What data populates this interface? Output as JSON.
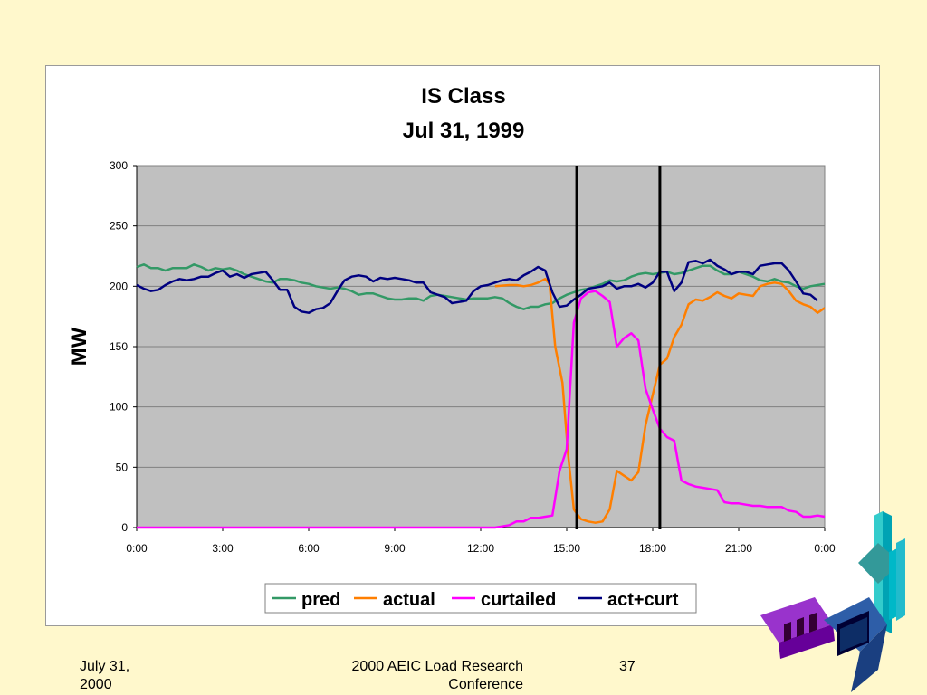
{
  "slide": {
    "footer_date": "July 31, 2000",
    "footer_conference": "2000 AEIC Load Research Conference",
    "page_number": "37",
    "background_color": "#FFF8CC"
  },
  "chart_data": {
    "type": "line",
    "title": "IS Class",
    "subtitle": "Jul 31, 1999",
    "xlabel": "",
    "ylabel": "MW",
    "ylim": [
      0,
      300
    ],
    "yticks": [
      0,
      50,
      100,
      150,
      200,
      250,
      300
    ],
    "xlim": [
      0,
      24
    ],
    "xticks": [
      0,
      3,
      6,
      9,
      12,
      15,
      18,
      21,
      24
    ],
    "xtick_labels": [
      "0:00",
      "3:00",
      "6:00",
      "9:00",
      "12:00",
      "15:00",
      "18:00",
      "21:00",
      "0:00"
    ],
    "grid": true,
    "legend_position": "bottom",
    "vertical_markers": [
      15.35,
      18.25
    ],
    "series": [
      {
        "name": "pred",
        "color": "#339966",
        "points": [
          [
            0,
            216
          ],
          [
            0.25,
            218
          ],
          [
            0.5,
            215
          ],
          [
            0.75,
            215
          ],
          [
            1,
            213
          ],
          [
            1.25,
            215
          ],
          [
            1.5,
            215
          ],
          [
            1.75,
            215
          ],
          [
            2,
            218
          ],
          [
            2.25,
            216
          ],
          [
            2.5,
            213
          ],
          [
            2.75,
            215
          ],
          [
            3,
            214
          ],
          [
            3.25,
            215
          ],
          [
            3.5,
            213
          ],
          [
            3.75,
            210
          ],
          [
            4,
            208
          ],
          [
            4.25,
            206
          ],
          [
            4.5,
            204
          ],
          [
            4.75,
            203
          ],
          [
            5,
            206
          ],
          [
            5.25,
            206
          ],
          [
            5.5,
            205
          ],
          [
            5.75,
            203
          ],
          [
            6,
            202
          ],
          [
            6.25,
            200
          ],
          [
            6.5,
            199
          ],
          [
            6.75,
            198
          ],
          [
            7,
            199
          ],
          [
            7.25,
            198
          ],
          [
            7.5,
            196
          ],
          [
            7.75,
            193
          ],
          [
            8,
            194
          ],
          [
            8.25,
            194
          ],
          [
            8.5,
            192
          ],
          [
            8.75,
            190
          ],
          [
            9,
            189
          ],
          [
            9.25,
            189
          ],
          [
            9.5,
            190
          ],
          [
            9.75,
            190
          ],
          [
            10,
            188
          ],
          [
            10.25,
            192
          ],
          [
            10.5,
            193
          ],
          [
            10.75,
            192
          ],
          [
            11,
            191
          ],
          [
            11.25,
            190
          ],
          [
            11.5,
            189
          ],
          [
            11.75,
            190
          ],
          [
            12,
            190
          ],
          [
            12.25,
            190
          ],
          [
            12.5,
            191
          ],
          [
            12.75,
            190
          ],
          [
            13,
            186
          ],
          [
            13.25,
            183
          ],
          [
            13.5,
            181
          ],
          [
            13.75,
            183
          ],
          [
            14,
            183
          ],
          [
            14.25,
            185
          ],
          [
            14.5,
            186
          ],
          [
            14.75,
            190
          ],
          [
            15,
            193
          ],
          [
            15.25,
            195
          ],
          [
            15.5,
            197
          ],
          [
            15.75,
            198
          ],
          [
            16,
            200
          ],
          [
            16.25,
            202
          ],
          [
            16.5,
            205
          ],
          [
            16.75,
            204
          ],
          [
            17,
            205
          ],
          [
            17.25,
            208
          ],
          [
            17.5,
            210
          ],
          [
            17.75,
            211
          ],
          [
            18,
            210
          ],
          [
            18.25,
            211
          ],
          [
            18.5,
            212
          ],
          [
            18.75,
            210
          ],
          [
            19,
            211
          ],
          [
            19.25,
            213
          ],
          [
            19.5,
            215
          ],
          [
            19.75,
            217
          ],
          [
            20,
            217
          ],
          [
            20.25,
            213
          ],
          [
            20.5,
            210
          ],
          [
            20.75,
            210
          ],
          [
            21,
            212
          ],
          [
            21.25,
            210
          ],
          [
            21.5,
            208
          ],
          [
            21.75,
            205
          ],
          [
            22,
            204
          ],
          [
            22.25,
            206
          ],
          [
            22.5,
            204
          ],
          [
            22.75,
            203
          ],
          [
            23,
            200
          ],
          [
            23.25,
            198
          ],
          [
            23.5,
            200
          ],
          [
            23.75,
            201
          ],
          [
            24,
            202
          ]
        ]
      },
      {
        "name": "actual",
        "color": "#FF7F00",
        "points": [
          [
            12.5,
            200
          ],
          [
            13,
            201
          ],
          [
            13.25,
            201
          ],
          [
            13.5,
            200
          ],
          [
            13.75,
            201
          ],
          [
            14,
            203
          ],
          [
            14.25,
            206
          ],
          [
            14.4,
            202
          ],
          [
            14.6,
            150
          ],
          [
            14.85,
            120
          ],
          [
            15.05,
            60
          ],
          [
            15.25,
            15
          ],
          [
            15.5,
            7
          ],
          [
            15.75,
            5
          ],
          [
            16,
            4
          ],
          [
            16.25,
            5
          ],
          [
            16.5,
            15
          ],
          [
            16.75,
            47
          ],
          [
            17,
            43
          ],
          [
            17.25,
            39
          ],
          [
            17.5,
            46
          ],
          [
            17.75,
            85
          ],
          [
            18,
            110
          ],
          [
            18.25,
            135
          ],
          [
            18.5,
            140
          ],
          [
            18.75,
            158
          ],
          [
            19,
            168
          ],
          [
            19.25,
            185
          ],
          [
            19.5,
            189
          ],
          [
            19.75,
            188
          ],
          [
            20,
            191
          ],
          [
            20.25,
            195
          ],
          [
            20.5,
            192
          ],
          [
            20.75,
            190
          ],
          [
            21,
            194
          ],
          [
            21.25,
            193
          ],
          [
            21.5,
            192
          ],
          [
            21.75,
            200
          ],
          [
            22,
            202
          ],
          [
            22.25,
            203
          ],
          [
            22.5,
            202
          ],
          [
            22.75,
            196
          ],
          [
            23,
            188
          ],
          [
            23.25,
            185
          ],
          [
            23.5,
            183
          ],
          [
            23.75,
            178
          ],
          [
            24,
            182
          ]
        ]
      },
      {
        "name": "curtailed",
        "color": "#FF00FF",
        "points": [
          [
            0,
            0
          ],
          [
            12,
            0
          ],
          [
            12.5,
            0
          ],
          [
            12.75,
            1
          ],
          [
            13,
            2
          ],
          [
            13.25,
            5
          ],
          [
            13.5,
            5
          ],
          [
            13.75,
            8
          ],
          [
            14,
            8
          ],
          [
            14.25,
            9
          ],
          [
            14.5,
            10
          ],
          [
            14.75,
            47
          ],
          [
            15,
            65
          ],
          [
            15.25,
            170
          ],
          [
            15.5,
            190
          ],
          [
            15.75,
            195
          ],
          [
            16,
            196
          ],
          [
            16.25,
            192
          ],
          [
            16.5,
            187
          ],
          [
            16.75,
            150
          ],
          [
            17,
            157
          ],
          [
            17.25,
            161
          ],
          [
            17.5,
            155
          ],
          [
            17.75,
            115
          ],
          [
            18,
            98
          ],
          [
            18.25,
            82
          ],
          [
            18.5,
            75
          ],
          [
            18.75,
            72
          ],
          [
            19,
            39
          ],
          [
            19.25,
            36
          ],
          [
            19.5,
            34
          ],
          [
            19.75,
            33
          ],
          [
            20,
            32
          ],
          [
            20.25,
            31
          ],
          [
            20.5,
            21
          ],
          [
            20.75,
            20
          ],
          [
            21,
            20
          ],
          [
            21.25,
            19
          ],
          [
            21.5,
            18
          ],
          [
            21.75,
            18
          ],
          [
            22,
            17
          ],
          [
            22.25,
            17
          ],
          [
            22.5,
            17
          ],
          [
            22.75,
            14
          ],
          [
            23,
            13
          ],
          [
            23.25,
            9
          ],
          [
            23.5,
            9
          ],
          [
            23.75,
            10
          ],
          [
            24,
            9
          ]
        ]
      },
      {
        "name": "act+curt",
        "color": "#000080",
        "points": [
          [
            0,
            201
          ],
          [
            0.25,
            198
          ],
          [
            0.5,
            196
          ],
          [
            0.75,
            197
          ],
          [
            1,
            201
          ],
          [
            1.25,
            204
          ],
          [
            1.5,
            206
          ],
          [
            1.75,
            205
          ],
          [
            2,
            206
          ],
          [
            2.25,
            208
          ],
          [
            2.5,
            208
          ],
          [
            2.75,
            211
          ],
          [
            3,
            213
          ],
          [
            3.25,
            208
          ],
          [
            3.5,
            210
          ],
          [
            3.75,
            207
          ],
          [
            4,
            210
          ],
          [
            4.25,
            211
          ],
          [
            4.5,
            212
          ],
          [
            4.75,
            205
          ],
          [
            5,
            197
          ],
          [
            5.25,
            197
          ],
          [
            5.5,
            183
          ],
          [
            5.75,
            179
          ],
          [
            6,
            178
          ],
          [
            6.25,
            181
          ],
          [
            6.5,
            182
          ],
          [
            6.75,
            186
          ],
          [
            7,
            196
          ],
          [
            7.25,
            205
          ],
          [
            7.5,
            208
          ],
          [
            7.75,
            209
          ],
          [
            8,
            208
          ],
          [
            8.25,
            204
          ],
          [
            8.5,
            207
          ],
          [
            8.75,
            206
          ],
          [
            9,
            207
          ],
          [
            9.25,
            206
          ],
          [
            9.5,
            205
          ],
          [
            9.75,
            203
          ],
          [
            10,
            203
          ],
          [
            10.25,
            195
          ],
          [
            10.5,
            193
          ],
          [
            10.75,
            191
          ],
          [
            11,
            186
          ],
          [
            11.25,
            187
          ],
          [
            11.5,
            188
          ],
          [
            11.75,
            196
          ],
          [
            12,
            200
          ],
          [
            12.25,
            201
          ],
          [
            12.5,
            203
          ],
          [
            12.75,
            205
          ],
          [
            13,
            206
          ],
          [
            13.25,
            205
          ],
          [
            13.5,
            209
          ],
          [
            13.75,
            212
          ],
          [
            14,
            216
          ],
          [
            14.25,
            213
          ],
          [
            14.5,
            195
          ],
          [
            14.75,
            183
          ],
          [
            15,
            184
          ],
          [
            15.25,
            189
          ],
          [
            15.5,
            193
          ],
          [
            15.75,
            198
          ],
          [
            16,
            199
          ],
          [
            16.25,
            200
          ],
          [
            16.5,
            203
          ],
          [
            16.75,
            198
          ],
          [
            17,
            200
          ],
          [
            17.25,
            200
          ],
          [
            17.5,
            202
          ],
          [
            17.75,
            199
          ],
          [
            18,
            203
          ],
          [
            18.25,
            212
          ],
          [
            18.5,
            212
          ],
          [
            18.75,
            196
          ],
          [
            19,
            203
          ],
          [
            19.25,
            220
          ],
          [
            19.5,
            221
          ],
          [
            19.75,
            219
          ],
          [
            20,
            222
          ],
          [
            20.25,
            217
          ],
          [
            20.5,
            214
          ],
          [
            20.75,
            210
          ],
          [
            21,
            212
          ],
          [
            21.25,
            212
          ],
          [
            21.5,
            210
          ],
          [
            21.75,
            217
          ],
          [
            22,
            218
          ],
          [
            22.25,
            219
          ],
          [
            22.5,
            219
          ],
          [
            22.75,
            213
          ],
          [
            23,
            204
          ],
          [
            23.25,
            194
          ],
          [
            23.5,
            193
          ],
          [
            23.75,
            188
          ]
        ]
      }
    ]
  }
}
